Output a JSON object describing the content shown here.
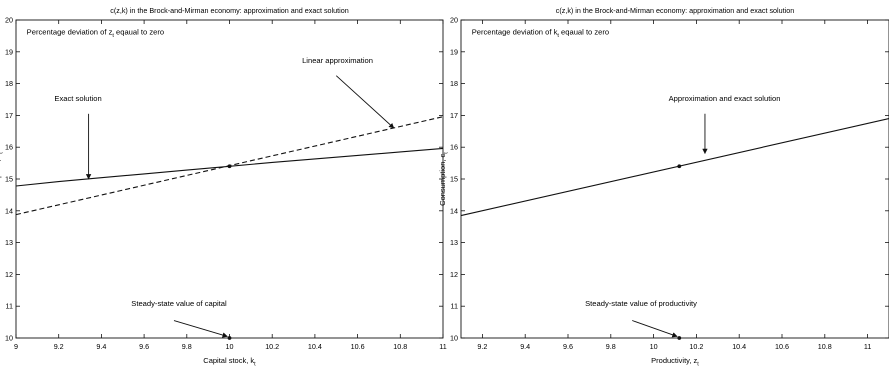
{
  "chart_data": [
    {
      "type": "line",
      "title": "c(z,k) in the Brock-and-Mirman economy: approximation and exact solution",
      "xlabel": "Capital stock, k",
      "xlabel_sub": "t",
      "ylabel": "Consumption, c",
      "ylabel_sub": "t",
      "xlim": [
        9,
        11
      ],
      "ylim": [
        10,
        20
      ],
      "x_ticks": [
        "9",
        "9.2",
        "9.4",
        "9.6",
        "9.8",
        "10",
        "10.2",
        "10.4",
        "10.6",
        "10.8",
        "11"
      ],
      "x_tick_values": [
        9,
        9.2,
        9.4,
        9.6,
        9.8,
        10,
        10.2,
        10.4,
        10.6,
        10.8,
        11
      ],
      "y_ticks": [
        "10",
        "11",
        "12",
        "13",
        "14",
        "15",
        "16",
        "17",
        "18",
        "19",
        "20"
      ],
      "y_tick_values": [
        10,
        11,
        12,
        13,
        14,
        15,
        16,
        17,
        18,
        19,
        20
      ],
      "grid": false,
      "series": [
        {
          "style": "solid",
          "x": [
            9,
            9.2,
            9.4,
            9.6,
            9.8,
            10,
            10.2,
            10.4,
            10.6,
            10.8,
            11
          ],
          "y": [
            14.78,
            14.92,
            15.04,
            15.16,
            15.28,
            15.4,
            15.52,
            15.63,
            15.74,
            15.85,
            15.96
          ]
        },
        {
          "style": "dashed",
          "x": [
            9,
            11
          ],
          "y": [
            13.88,
            16.96
          ]
        }
      ],
      "markers": [
        {
          "x": 10,
          "y": 15.4
        },
        {
          "x": 10,
          "y": 10
        }
      ],
      "annotations": [
        {
          "id": "subtitle",
          "text": "Percentage deviation of z",
          "sub": "t",
          "tail": " eqaual to zero",
          "anchor": [
            9.05,
            19.55
          ]
        },
        {
          "id": "linear",
          "text": "Linear approximation",
          "anchor": [
            10.34,
            18.65
          ],
          "arrow": [
            [
              10.5,
              18.25
            ],
            [
              10.77,
              16.6
            ]
          ]
        },
        {
          "id": "exact",
          "text": "Exact solution",
          "anchor": [
            9.18,
            17.45
          ],
          "arrow": [
            [
              9.34,
              17.05
            ],
            [
              9.34,
              15.0
            ]
          ]
        },
        {
          "id": "steady",
          "text": "Steady-state value of capital",
          "anchor": [
            9.54,
            11.0
          ],
          "arrow": [
            [
              9.74,
              10.55
            ],
            [
              9.99,
              10.05
            ]
          ]
        }
      ]
    },
    {
      "type": "line",
      "title": "c(z,k) in the Brock-and-Mirman economy: approximation and exact solution",
      "xlabel": "Productivity, z",
      "xlabel_sub": "t",
      "ylabel": "Consumption, c",
      "ylabel_sub": "t",
      "xlim": [
        9.1,
        11.1
      ],
      "ylim": [
        10,
        20
      ],
      "x_ticks": [
        "9.2",
        "9.4",
        "9.6",
        "9.8",
        "10",
        "10.2",
        "10.4",
        "10.6",
        "10.8",
        "11"
      ],
      "x_tick_values": [
        9.2,
        9.4,
        9.6,
        9.8,
        10,
        10.2,
        10.4,
        10.6,
        10.8,
        11
      ],
      "y_ticks": [
        "10",
        "11",
        "12",
        "13",
        "14",
        "15",
        "16",
        "17",
        "18",
        "19",
        "20"
      ],
      "y_tick_values": [
        10,
        11,
        12,
        13,
        14,
        15,
        16,
        17,
        18,
        19,
        20
      ],
      "grid": false,
      "series": [
        {
          "style": "solid",
          "x": [
            9.1,
            11.1
          ],
          "y": [
            13.85,
            16.9
          ]
        }
      ],
      "markers": [
        {
          "x": 10.12,
          "y": 15.4
        },
        {
          "x": 10.12,
          "y": 10
        }
      ],
      "annotations": [
        {
          "id": "subtitle",
          "text": "Percentage deviation of k",
          "sub": "t",
          "tail": " eqaual to zero",
          "anchor": [
            9.15,
            19.55
          ]
        },
        {
          "id": "approx",
          "text": "Approximation and exact solution",
          "anchor": [
            10.07,
            17.45
          ],
          "arrow": [
            [
              10.24,
              17.05
            ],
            [
              10.24,
              15.8
            ]
          ]
        },
        {
          "id": "steady",
          "text": "Steady-state value of productivity",
          "anchor": [
            9.68,
            11.0
          ],
          "arrow": [
            [
              9.9,
              10.55
            ],
            [
              10.11,
              10.05
            ]
          ]
        }
      ]
    }
  ]
}
